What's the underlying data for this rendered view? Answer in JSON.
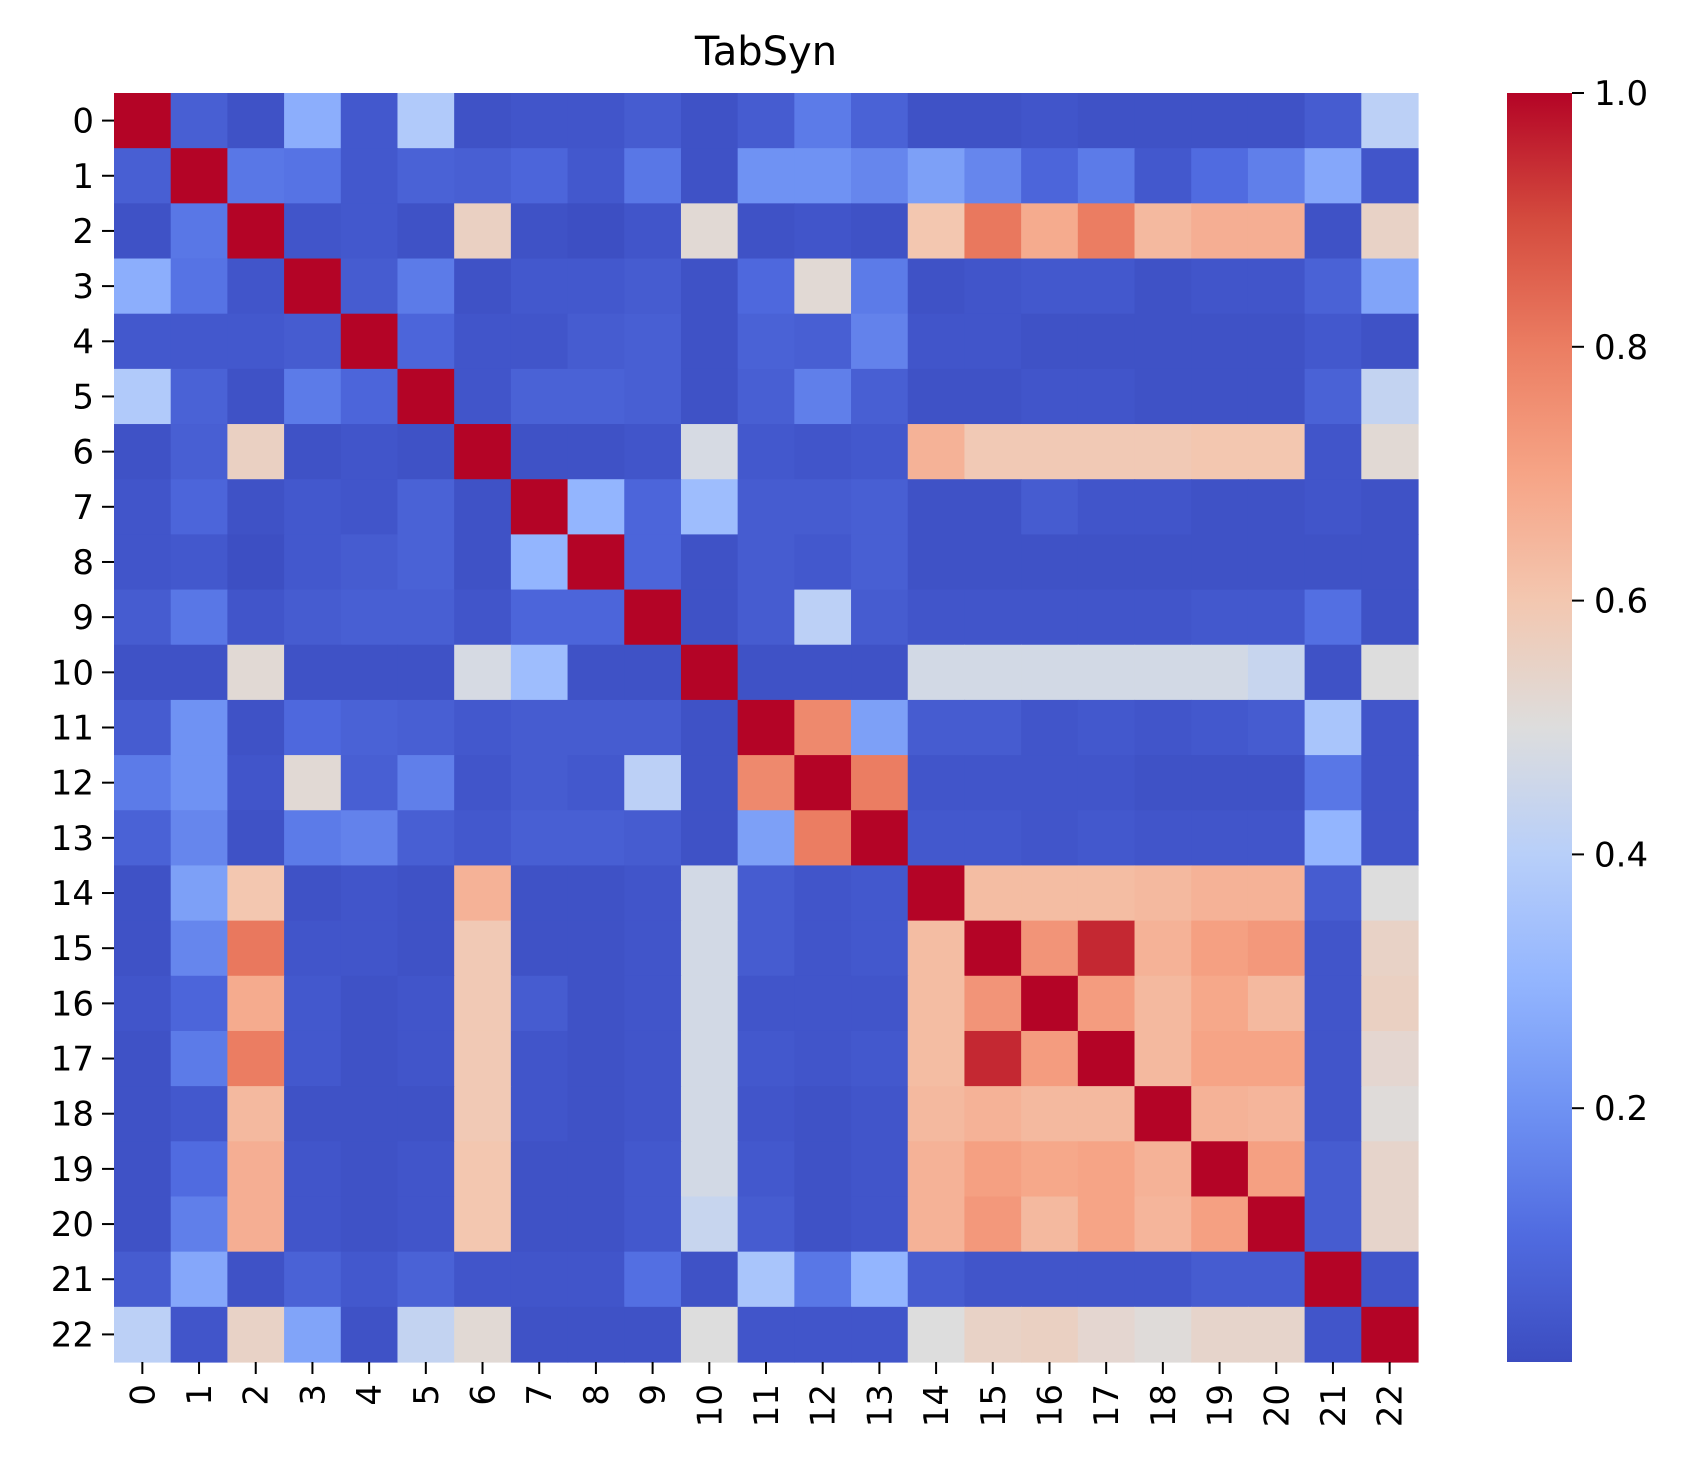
{
  "chart_data": {
    "type": "heatmap",
    "title": "TabSyn",
    "xlabel": "",
    "ylabel": "",
    "colormap": "coolwarm",
    "vmin": 0.0,
    "vmax": 1.0,
    "x_tick_labels": [
      "0",
      "1",
      "2",
      "3",
      "4",
      "5",
      "6",
      "7",
      "8",
      "9",
      "10",
      "11",
      "12",
      "13",
      "14",
      "15",
      "16",
      "17",
      "18",
      "19",
      "20",
      "21",
      "22"
    ],
    "y_tick_labels": [
      "0",
      "1",
      "2",
      "3",
      "4",
      "5",
      "6",
      "7",
      "8",
      "9",
      "10",
      "11",
      "12",
      "13",
      "14",
      "15",
      "16",
      "17",
      "18",
      "19",
      "20",
      "21",
      "22"
    ],
    "colorbar_ticks": [
      {
        "value": 0.2,
        "label": "0.2"
      },
      {
        "value": 0.4,
        "label": "0.4"
      },
      {
        "value": 0.6,
        "label": "0.6"
      },
      {
        "value": 0.8,
        "label": "0.8"
      },
      {
        "value": 1.0,
        "label": "1.0"
      }
    ],
    "values": [
      [
        1.0,
        0.06,
        0.02,
        0.28,
        0.04,
        0.38,
        0.02,
        0.03,
        0.03,
        0.05,
        0.02,
        0.05,
        0.14,
        0.07,
        0.02,
        0.02,
        0.03,
        0.02,
        0.02,
        0.02,
        0.02,
        0.05,
        0.41
      ],
      [
        0.06,
        1.0,
        0.13,
        0.12,
        0.04,
        0.07,
        0.06,
        0.08,
        0.04,
        0.13,
        0.02,
        0.2,
        0.2,
        0.17,
        0.24,
        0.17,
        0.08,
        0.14,
        0.04,
        0.1,
        0.15,
        0.26,
        0.03
      ],
      [
        0.02,
        0.13,
        1.0,
        0.03,
        0.04,
        0.02,
        0.56,
        0.02,
        0.01,
        0.03,
        0.52,
        0.02,
        0.03,
        0.02,
        0.6,
        0.81,
        0.68,
        0.8,
        0.64,
        0.67,
        0.67,
        0.02,
        0.55
      ],
      [
        0.28,
        0.12,
        0.03,
        1.0,
        0.05,
        0.14,
        0.02,
        0.04,
        0.04,
        0.05,
        0.02,
        0.09,
        0.52,
        0.14,
        0.02,
        0.03,
        0.04,
        0.04,
        0.02,
        0.03,
        0.03,
        0.07,
        0.25
      ],
      [
        0.04,
        0.04,
        0.04,
        0.05,
        1.0,
        0.08,
        0.03,
        0.03,
        0.05,
        0.06,
        0.02,
        0.07,
        0.06,
        0.16,
        0.03,
        0.03,
        0.02,
        0.02,
        0.02,
        0.02,
        0.02,
        0.04,
        0.02
      ],
      [
        0.38,
        0.07,
        0.02,
        0.14,
        0.08,
        1.0,
        0.03,
        0.07,
        0.07,
        0.06,
        0.02,
        0.06,
        0.15,
        0.06,
        0.02,
        0.02,
        0.03,
        0.03,
        0.02,
        0.02,
        0.02,
        0.07,
        0.43
      ],
      [
        0.02,
        0.06,
        0.56,
        0.02,
        0.03,
        0.02,
        1.0,
        0.02,
        0.02,
        0.03,
        0.48,
        0.04,
        0.03,
        0.04,
        0.66,
        0.59,
        0.59,
        0.59,
        0.59,
        0.6,
        0.6,
        0.03,
        0.52
      ],
      [
        0.03,
        0.08,
        0.02,
        0.04,
        0.03,
        0.07,
        0.02,
        1.0,
        0.3,
        0.08,
        0.33,
        0.05,
        0.05,
        0.06,
        0.02,
        0.02,
        0.05,
        0.03,
        0.03,
        0.02,
        0.02,
        0.03,
        0.02
      ],
      [
        0.03,
        0.04,
        0.01,
        0.04,
        0.05,
        0.07,
        0.02,
        0.3,
        1.0,
        0.08,
        0.02,
        0.05,
        0.04,
        0.06,
        0.02,
        0.02,
        0.02,
        0.02,
        0.02,
        0.02,
        0.02,
        0.02,
        0.02
      ],
      [
        0.05,
        0.13,
        0.03,
        0.05,
        0.06,
        0.06,
        0.03,
        0.08,
        0.08,
        1.0,
        0.02,
        0.05,
        0.41,
        0.05,
        0.03,
        0.03,
        0.03,
        0.03,
        0.03,
        0.04,
        0.04,
        0.11,
        0.02
      ],
      [
        0.02,
        0.02,
        0.52,
        0.02,
        0.02,
        0.02,
        0.48,
        0.33,
        0.02,
        0.02,
        1.0,
        0.02,
        0.02,
        0.02,
        0.47,
        0.47,
        0.47,
        0.47,
        0.47,
        0.47,
        0.44,
        0.02,
        0.5
      ],
      [
        0.05,
        0.2,
        0.02,
        0.09,
        0.07,
        0.06,
        0.04,
        0.05,
        0.05,
        0.05,
        0.02,
        1.0,
        0.77,
        0.24,
        0.05,
        0.05,
        0.03,
        0.04,
        0.03,
        0.04,
        0.05,
        0.36,
        0.03
      ],
      [
        0.14,
        0.2,
        0.03,
        0.52,
        0.06,
        0.15,
        0.03,
        0.05,
        0.04,
        0.41,
        0.02,
        0.77,
        1.0,
        0.8,
        0.03,
        0.03,
        0.03,
        0.03,
        0.02,
        0.02,
        0.02,
        0.13,
        0.03
      ],
      [
        0.07,
        0.17,
        0.02,
        0.14,
        0.16,
        0.06,
        0.04,
        0.06,
        0.06,
        0.05,
        0.02,
        0.24,
        0.8,
        1.0,
        0.04,
        0.04,
        0.03,
        0.04,
        0.03,
        0.03,
        0.03,
        0.3,
        0.03
      ],
      [
        0.02,
        0.24,
        0.6,
        0.02,
        0.03,
        0.02,
        0.66,
        0.02,
        0.02,
        0.03,
        0.47,
        0.05,
        0.03,
        0.04,
        1.0,
        0.63,
        0.63,
        0.63,
        0.64,
        0.66,
        0.66,
        0.05,
        0.5
      ],
      [
        0.02,
        0.17,
        0.81,
        0.03,
        0.03,
        0.02,
        0.59,
        0.02,
        0.02,
        0.03,
        0.47,
        0.05,
        0.03,
        0.04,
        0.63,
        1.0,
        0.74,
        0.95,
        0.66,
        0.71,
        0.73,
        0.03,
        0.55
      ],
      [
        0.03,
        0.08,
        0.68,
        0.04,
        0.02,
        0.03,
        0.59,
        0.05,
        0.02,
        0.03,
        0.47,
        0.03,
        0.03,
        0.03,
        0.63,
        0.74,
        1.0,
        0.72,
        0.64,
        0.69,
        0.64,
        0.03,
        0.56
      ],
      [
        0.02,
        0.14,
        0.8,
        0.04,
        0.02,
        0.03,
        0.59,
        0.03,
        0.02,
        0.03,
        0.47,
        0.04,
        0.03,
        0.04,
        0.63,
        0.95,
        0.72,
        1.0,
        0.64,
        0.7,
        0.7,
        0.03,
        0.53
      ],
      [
        0.02,
        0.04,
        0.64,
        0.02,
        0.02,
        0.02,
        0.59,
        0.03,
        0.02,
        0.03,
        0.47,
        0.03,
        0.02,
        0.03,
        0.64,
        0.66,
        0.64,
        0.64,
        1.0,
        0.66,
        0.65,
        0.03,
        0.51
      ],
      [
        0.02,
        0.1,
        0.67,
        0.03,
        0.02,
        0.03,
        0.6,
        0.02,
        0.02,
        0.04,
        0.47,
        0.04,
        0.02,
        0.03,
        0.66,
        0.71,
        0.69,
        0.7,
        0.66,
        1.0,
        0.71,
        0.05,
        0.54
      ],
      [
        0.02,
        0.15,
        0.67,
        0.03,
        0.02,
        0.03,
        0.6,
        0.02,
        0.02,
        0.04,
        0.44,
        0.05,
        0.02,
        0.03,
        0.66,
        0.73,
        0.64,
        0.7,
        0.65,
        0.71,
        1.0,
        0.05,
        0.54
      ],
      [
        0.05,
        0.26,
        0.02,
        0.07,
        0.04,
        0.07,
        0.03,
        0.03,
        0.03,
        0.11,
        0.02,
        0.36,
        0.13,
        0.3,
        0.05,
        0.03,
        0.03,
        0.03,
        0.03,
        0.05,
        0.05,
        1.0,
        0.03
      ],
      [
        0.41,
        0.03,
        0.55,
        0.25,
        0.02,
        0.43,
        0.52,
        0.02,
        0.02,
        0.02,
        0.5,
        0.03,
        0.03,
        0.03,
        0.5,
        0.55,
        0.56,
        0.53,
        0.51,
        0.54,
        0.54,
        0.03,
        1.0
      ]
    ]
  }
}
